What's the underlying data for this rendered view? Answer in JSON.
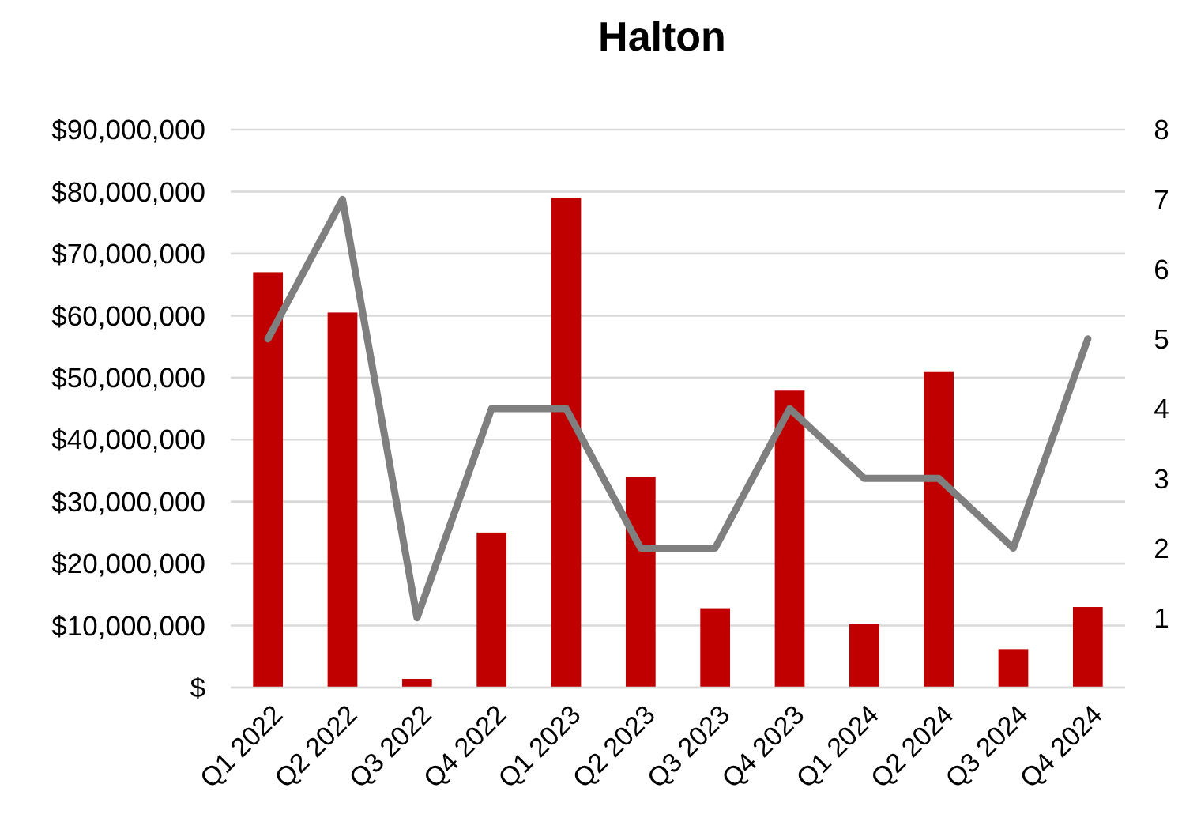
{
  "chart_data": {
    "type": "bar",
    "title": "Halton",
    "categories": [
      "Q1 2022",
      "Q2 2022",
      "Q3 2022",
      "Q4 2022",
      "Q1 2023",
      "Q2 2023",
      "Q3 2023",
      "Q4 2023",
      "Q1 2024",
      "Q2 2024",
      "Q3 2024",
      "Q4 2024"
    ],
    "series": [
      {
        "color": "#c00000",
        "values": [
          67000000,
          60500000,
          1400000,
          25000000,
          79000000,
          34000000,
          12800000,
          47900000,
          10200000,
          50900000,
          6200000,
          13000000
        ]
      },
      {
        "type": "line",
        "axis": "y2",
        "color": "#7f7f7f",
        "values": [
          5,
          7,
          1,
          4,
          4,
          2,
          2,
          4,
          3,
          3,
          2,
          5
        ]
      }
    ],
    "ylim": [
      0,
      90000000
    ],
    "yticks": [
      {
        "value": 0,
        "label": "$"
      },
      {
        "value": 10000000,
        "label": "$10,000,000"
      },
      {
        "value": 20000000,
        "label": "$20,000,000"
      },
      {
        "value": 30000000,
        "label": "$30,000,000"
      },
      {
        "value": 40000000,
        "label": "$40,000,000"
      },
      {
        "value": 50000000,
        "label": "$50,000,000"
      },
      {
        "value": 60000000,
        "label": "$60,000,000"
      },
      {
        "value": 70000000,
        "label": "$70,000,000"
      },
      {
        "value": 80000000,
        "label": "$80,000,000"
      },
      {
        "value": 90000000,
        "label": "$90,000,000"
      }
    ],
    "y2lim": [
      0,
      8
    ],
    "y2ticks": [
      1,
      2,
      3,
      4,
      5,
      6,
      7,
      8
    ],
    "grid": "y",
    "marker": "none",
    "line_style": "solid"
  }
}
